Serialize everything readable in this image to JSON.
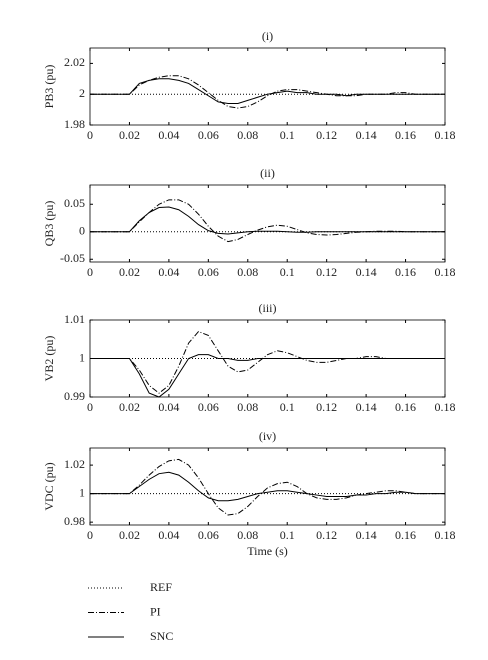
{
  "chart_data": [
    {
      "type": "line",
      "title": "(i)",
      "y_label": "PB3 (pu)",
      "x": [
        0,
        0.02,
        0.025,
        0.03,
        0.035,
        0.04,
        0.045,
        0.05,
        0.055,
        0.06,
        0.065,
        0.07,
        0.075,
        0.08,
        0.085,
        0.09,
        0.095,
        0.1,
        0.105,
        0.11,
        0.115,
        0.12,
        0.125,
        0.13,
        0.135,
        0.14,
        0.145,
        0.15,
        0.155,
        0.16,
        0.165,
        0.17,
        0.175,
        0.18
      ],
      "xlim": [
        0,
        0.18
      ],
      "xticks": [
        0,
        0.02,
        0.04,
        0.06,
        0.08,
        0.1,
        0.12,
        0.14,
        0.16,
        0.18
      ],
      "ylim": [
        1.98,
        2.03
      ],
      "yticks": [
        1.98,
        2,
        2.02
      ],
      "series": [
        {
          "values": [
            2,
            2,
            2,
            2,
            2,
            2,
            2,
            2,
            2,
            2,
            2,
            2,
            2,
            2,
            2,
            2,
            2,
            2,
            2,
            2,
            2,
            2,
            2,
            2,
            2,
            2,
            2,
            2,
            2,
            2,
            2,
            2,
            2,
            2
          ]
        },
        {
          "values": [
            2,
            2,
            2.006,
            2.009,
            2.011,
            2.012,
            2.012,
            2.01,
            2.006,
            2.001,
            1.996,
            1.992,
            1.991,
            1.992,
            1.995,
            1.999,
            2.002,
            2.003,
            2.003,
            2.002,
            2.001,
            2,
            1.999,
            1.999,
            1.999,
            2,
            2,
            2,
            2.001,
            2.001,
            2,
            2,
            2,
            2
          ]
        },
        {
          "values": [
            2,
            2,
            2.007,
            2.009,
            2.01,
            2.01,
            2.009,
            2.007,
            2.003,
            1.999,
            1.995,
            1.994,
            1.994,
            1.996,
            1.998,
            2,
            2.001,
            2.002,
            2.001,
            2.001,
            2,
            2,
            2,
            1.999,
            2,
            2,
            2,
            2,
            2,
            2,
            2,
            2,
            2,
            2
          ]
        }
      ]
    },
    {
      "type": "line",
      "title": "(ii)",
      "y_label": "QB3 (pu)",
      "x": [
        0,
        0.02,
        0.025,
        0.03,
        0.035,
        0.04,
        0.045,
        0.05,
        0.055,
        0.06,
        0.065,
        0.07,
        0.075,
        0.08,
        0.085,
        0.09,
        0.095,
        0.1,
        0.105,
        0.11,
        0.115,
        0.12,
        0.125,
        0.13,
        0.135,
        0.14,
        0.145,
        0.15,
        0.155,
        0.16,
        0.165,
        0.17,
        0.175,
        0.18
      ],
      "xlim": [
        0,
        0.18
      ],
      "xticks": [
        0,
        0.02,
        0.04,
        0.06,
        0.08,
        0.1,
        0.12,
        0.14,
        0.16,
        0.18
      ],
      "ylim": [
        -0.055,
        0.085
      ],
      "yticks": [
        -0.05,
        0,
        0.05
      ],
      "series": [
        {
          "values": [
            0,
            0,
            0,
            0,
            0,
            0,
            0,
            0,
            0,
            0,
            0,
            0,
            0,
            0,
            0,
            0,
            0,
            0,
            0,
            0,
            0,
            0,
            0,
            0,
            0,
            0,
            0,
            0,
            0,
            0,
            0,
            0,
            0,
            0
          ]
        },
        {
          "values": [
            0,
            0,
            0.018,
            0.035,
            0.05,
            0.058,
            0.058,
            0.05,
            0.032,
            0.01,
            -0.008,
            -0.018,
            -0.014,
            -0.005,
            0.003,
            0.009,
            0.012,
            0.01,
            0.004,
            -0.002,
            -0.005,
            -0.006,
            -0.005,
            -0.003,
            -0.001,
            0,
            0.001,
            0.001,
            0.001,
            0,
            0,
            0,
            0,
            0
          ]
        },
        {
          "values": [
            0,
            0,
            0.02,
            0.035,
            0.044,
            0.045,
            0.04,
            0.028,
            0.013,
            0.002,
            -0.003,
            -0.004,
            -0.002,
            0,
            0.001,
            0.001,
            0.001,
            0,
            -0.001,
            -0.001,
            0,
            0,
            0,
            0,
            0,
            0,
            0,
            0,
            0,
            0,
            0,
            0,
            0,
            0
          ]
        }
      ]
    },
    {
      "type": "line",
      "title": "(iii)",
      "y_label": "VB2 (pu)",
      "x": [
        0,
        0.02,
        0.025,
        0.03,
        0.035,
        0.04,
        0.045,
        0.05,
        0.055,
        0.06,
        0.065,
        0.07,
        0.075,
        0.08,
        0.085,
        0.09,
        0.095,
        0.1,
        0.105,
        0.11,
        0.115,
        0.12,
        0.125,
        0.13,
        0.135,
        0.14,
        0.145,
        0.15,
        0.155,
        0.16,
        0.165,
        0.17,
        0.175,
        0.18
      ],
      "xlim": [
        0,
        0.18
      ],
      "xticks": [
        0,
        0.02,
        0.04,
        0.06,
        0.08,
        0.1,
        0.12,
        0.14,
        0.16,
        0.18
      ],
      "ylim": [
        0.99,
        1.01
      ],
      "yticks": [
        0.99,
        1,
        1.01
      ],
      "series": [
        {
          "values": [
            1,
            1,
            1,
            1,
            1,
            1,
            1,
            1,
            1,
            1,
            1,
            1,
            1,
            1,
            1,
            1,
            1,
            1,
            1,
            1,
            1,
            1,
            1,
            1,
            1,
            1,
            1,
            1,
            1,
            1,
            1,
            1,
            1,
            1
          ]
        },
        {
          "values": [
            1,
            1,
            0.997,
            0.993,
            0.991,
            0.993,
            0.998,
            1.004,
            1.007,
            1.006,
            1.002,
            0.998,
            0.9965,
            0.997,
            0.999,
            1.001,
            1.002,
            1.0015,
            1.0005,
            0.9995,
            0.999,
            0.999,
            0.9995,
            1,
            1,
            1.0005,
            1.0005,
            1,
            1,
            1,
            1,
            1,
            1,
            1
          ]
        },
        {
          "values": [
            1,
            1,
            0.996,
            0.991,
            0.99,
            0.992,
            0.996,
            1,
            1.001,
            1.001,
            1,
            1,
            0.9995,
            0.9995,
            1,
            1,
            1,
            1,
            1,
            1,
            1,
            1,
            1,
            1,
            1,
            1,
            1,
            1,
            1,
            1,
            1,
            1,
            1,
            1
          ]
        }
      ]
    },
    {
      "type": "line",
      "title": "(iv)",
      "y_label": "VDC (pu)",
      "x_label": "Time (s)",
      "x": [
        0,
        0.02,
        0.025,
        0.03,
        0.035,
        0.04,
        0.045,
        0.05,
        0.055,
        0.06,
        0.065,
        0.07,
        0.075,
        0.08,
        0.085,
        0.09,
        0.095,
        0.1,
        0.105,
        0.11,
        0.115,
        0.12,
        0.125,
        0.13,
        0.135,
        0.14,
        0.145,
        0.15,
        0.155,
        0.16,
        0.165,
        0.17,
        0.175,
        0.18
      ],
      "xlim": [
        0,
        0.18
      ],
      "xticks": [
        0,
        0.02,
        0.04,
        0.06,
        0.08,
        0.1,
        0.12,
        0.14,
        0.16,
        0.18
      ],
      "ylim": [
        0.978,
        1.032
      ],
      "yticks": [
        0.98,
        1,
        1.02
      ],
      "series": [
        {
          "values": [
            1,
            1,
            1,
            1,
            1,
            1,
            1,
            1,
            1,
            1,
            1,
            1,
            1,
            1,
            1,
            1,
            1,
            1,
            1,
            1,
            1,
            1,
            1,
            1,
            1,
            1,
            1,
            1,
            1,
            1,
            1,
            1,
            1,
            1
          ]
        },
        {
          "values": [
            1,
            1,
            1.006,
            1.013,
            1.019,
            1.023,
            1.024,
            1.02,
            1.011,
            1,
            0.99,
            0.985,
            0.986,
            0.991,
            0.998,
            1.004,
            1.007,
            1.008,
            1.005,
            1,
            0.997,
            0.996,
            0.996,
            0.997,
            0.999,
            1,
            1.001,
            1.002,
            1.002,
            1.001,
            1,
            1,
            1,
            1
          ]
        },
        {
          "values": [
            1,
            1,
            1.005,
            1.01,
            1.014,
            1.015,
            1.013,
            1.008,
            1.002,
            0.997,
            0.995,
            0.995,
            0.996,
            0.998,
            1,
            1.001,
            1.002,
            1.002,
            1.001,
            1,
            0.999,
            0.998,
            0.998,
            0.998,
            0.999,
            0.999,
            1,
            1,
            1.001,
            1.001,
            1,
            1,
            1,
            1
          ]
        }
      ]
    }
  ],
  "legend": [
    {
      "name": "REF",
      "dash": "dotted",
      "color": "#000000"
    },
    {
      "name": "PI",
      "dash": "dashdot",
      "color": "#000000"
    },
    {
      "name": "SNC",
      "dash": "solid",
      "color": "#000000"
    }
  ]
}
